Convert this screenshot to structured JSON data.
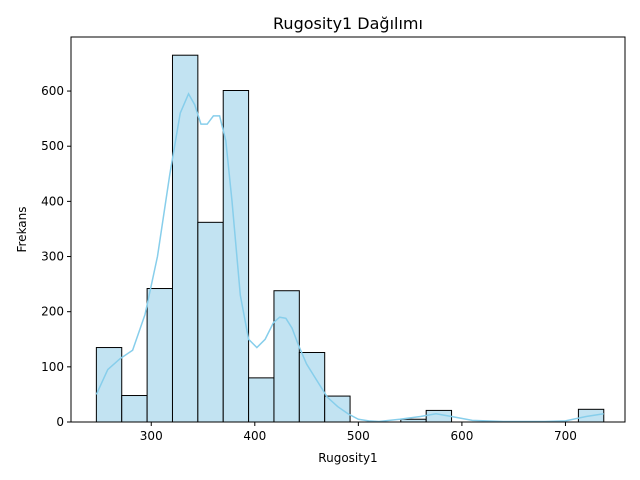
{
  "chart_data": {
    "type": "bar",
    "title": "Rugosity1 Dağılımı",
    "xlabel": "Rugosity1",
    "ylabel": "Frekans",
    "xlim": [
      222.5,
      757.5
    ],
    "ylim": [
      0,
      698
    ],
    "xticks": [
      300,
      400,
      500,
      600,
      700
    ],
    "yticks": [
      0,
      100,
      200,
      300,
      400,
      500,
      600
    ],
    "bin_edges": [
      247,
      271.5,
      296,
      320.5,
      345,
      369.5,
      394,
      418.5,
      443,
      467.5,
      492,
      516.5,
      541,
      565.5,
      590,
      614.5,
      639,
      663.5,
      688,
      712.5,
      737
    ],
    "values": [
      135,
      48,
      242,
      665,
      362,
      601,
      80,
      238,
      126,
      47,
      0,
      0,
      5,
      21,
      0,
      0,
      0,
      0,
      0,
      23
    ],
    "kde": {
      "x": [
        247,
        258,
        270,
        282,
        294,
        306,
        318,
        328,
        336,
        342,
        348,
        354,
        360,
        366,
        372,
        378,
        386,
        394,
        402,
        410,
        418,
        424,
        430,
        436,
        442,
        450,
        460,
        470,
        480,
        490,
        500,
        510,
        520,
        540,
        560,
        575,
        590,
        610,
        640,
        680,
        700,
        720,
        737
      ],
      "y": [
        50,
        95,
        115,
        130,
        195,
        300,
        450,
        560,
        595,
        575,
        540,
        540,
        555,
        555,
        510,
        400,
        230,
        150,
        135,
        150,
        180,
        190,
        188,
        170,
        140,
        105,
        75,
        45,
        28,
        15,
        5,
        2,
        1,
        5,
        10,
        15,
        10,
        3,
        1,
        1,
        2,
        10,
        15
      ]
    },
    "colors": {
      "bar_fill": "#c2e3f2",
      "bar_edge": "#000000",
      "kde_line": "#87ceeb"
    },
    "grid": false,
    "legend": "none"
  }
}
